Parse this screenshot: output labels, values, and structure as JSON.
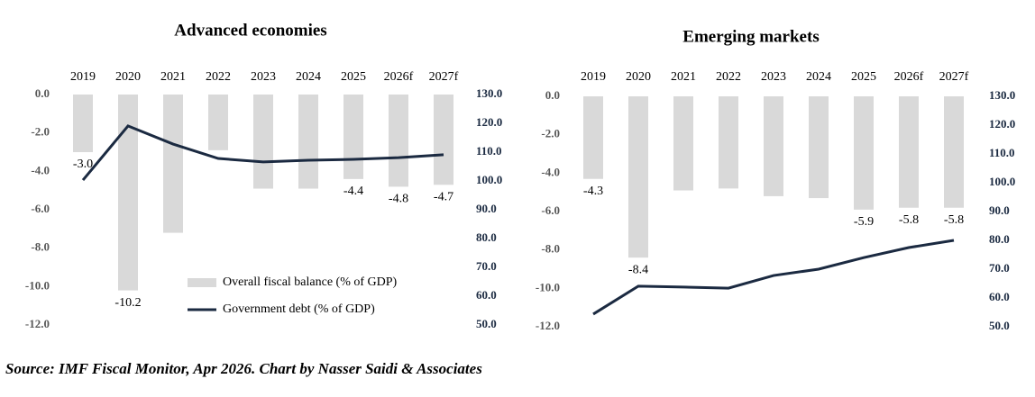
{
  "chart_data": [
    {
      "type": "bar-line",
      "title": "Advanced economies",
      "categories": [
        "2019",
        "2020",
        "2021",
        "2022",
        "2023",
        "2024",
        "2025",
        "2026f",
        "2027f"
      ],
      "series": [
        {
          "name": "Overall fiscal balance (% of GDP)",
          "type": "bar",
          "color": "#d9d9d9",
          "values": [
            -3.0,
            -10.2,
            -7.2,
            -2.9,
            -4.9,
            -4.9,
            -4.4,
            -4.8,
            -4.7
          ],
          "value_labels": [
            "-3.0",
            "-10.2",
            null,
            null,
            null,
            null,
            "-4.4",
            "-4.8",
            "-4.7"
          ]
        },
        {
          "name": "Government debt (% of GDP)",
          "type": "line",
          "color": "#1b2a41",
          "axis": "y2",
          "values": [
            100.3,
            119.1,
            112.8,
            107.8,
            106.6,
            107.2,
            107.5,
            108.1,
            109.1
          ]
        }
      ],
      "ylim": [
        0,
        -12
      ],
      "yticks": [
        {
          "value": 0,
          "label": "0.0"
        },
        {
          "value": -2,
          "label": "-2.0"
        },
        {
          "value": -4,
          "label": "-4.0"
        },
        {
          "value": -6,
          "label": "-6.0"
        },
        {
          "value": -8,
          "label": "-8.0"
        },
        {
          "value": -10,
          "label": "-10.0"
        },
        {
          "value": -12,
          "label": "-12.0"
        }
      ],
      "y2lim": [
        130,
        50
      ],
      "y2ticks": [
        {
          "value": 130,
          "label": "130.0"
        },
        {
          "value": 120,
          "label": "120.0"
        },
        {
          "value": 110,
          "label": "110.0"
        },
        {
          "value": 100,
          "label": "100.0"
        },
        {
          "value": 90,
          "label": "90.0"
        },
        {
          "value": 80,
          "label": "80.0"
        },
        {
          "value": 70,
          "label": "70.0"
        },
        {
          "value": 60,
          "label": "60.0"
        },
        {
          "value": 50,
          "label": "50.0"
        }
      ],
      "legend": true
    },
    {
      "type": "bar-line",
      "title": "Emerging markets",
      "categories": [
        "2019",
        "2020",
        "2021",
        "2022",
        "2023",
        "2024",
        "2025",
        "2026f",
        "2027f"
      ],
      "series": [
        {
          "type": "bar",
          "color": "#d9d9d9",
          "values": [
            -4.3,
            -8.4,
            -4.9,
            -4.8,
            -5.2,
            -5.3,
            -5.9,
            -5.8,
            -5.8
          ],
          "value_labels": [
            "-4.3",
            "-8.4",
            null,
            null,
            null,
            null,
            "-5.9",
            "-5.8",
            "-5.8"
          ]
        },
        {
          "type": "line",
          "color": "#1b2a41",
          "axis": "y2",
          "values": [
            54.4,
            64.1,
            63.8,
            63.4,
            67.8,
            70.0,
            74.0,
            77.5,
            80.0
          ]
        }
      ],
      "ylim": [
        0,
        -12
      ],
      "yticks": [
        {
          "value": 0,
          "label": "0.0"
        },
        {
          "value": -2,
          "label": "-2.0"
        },
        {
          "value": -4,
          "label": "-4.0"
        },
        {
          "value": -6,
          "label": "-6.0"
        },
        {
          "value": -8,
          "label": "-8.0"
        },
        {
          "value": -10,
          "label": "-10.0"
        },
        {
          "value": -12,
          "label": "-12.0"
        }
      ],
      "y2lim": [
        130,
        50
      ],
      "y2ticks": [
        {
          "value": 130,
          "label": "130.0"
        },
        {
          "value": 120,
          "label": "120.0"
        },
        {
          "value": 110,
          "label": "110.0"
        },
        {
          "value": 100,
          "label": "100.0"
        },
        {
          "value": 90,
          "label": "90.0"
        },
        {
          "value": 80,
          "label": "80.0"
        },
        {
          "value": 70,
          "label": "70.0"
        },
        {
          "value": 60,
          "label": "60.0"
        },
        {
          "value": 50,
          "label": "50.0"
        }
      ],
      "legend": false
    }
  ],
  "source": "Source: IMF Fiscal Monitor, Apr 2026. Chart by Nasser Saidi & Associates"
}
